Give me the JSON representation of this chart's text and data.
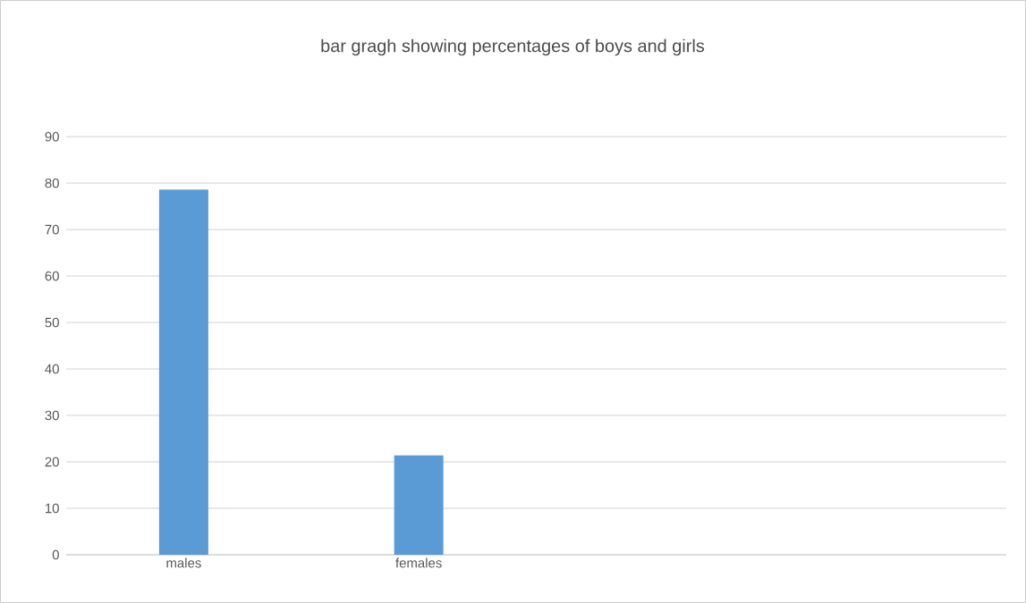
{
  "chart_data": {
    "type": "bar",
    "title": "bar gragh showing percentages of boys and girls",
    "categories": [
      "males",
      "females",
      null,
      null
    ],
    "values": [
      78.6,
      21.4,
      null,
      null
    ],
    "color": "#5b9bd5",
    "ylim": [
      0,
      90
    ],
    "yticks": [
      0,
      10,
      20,
      30,
      40,
      50,
      60,
      70,
      80,
      90
    ],
    "grid": "y"
  }
}
